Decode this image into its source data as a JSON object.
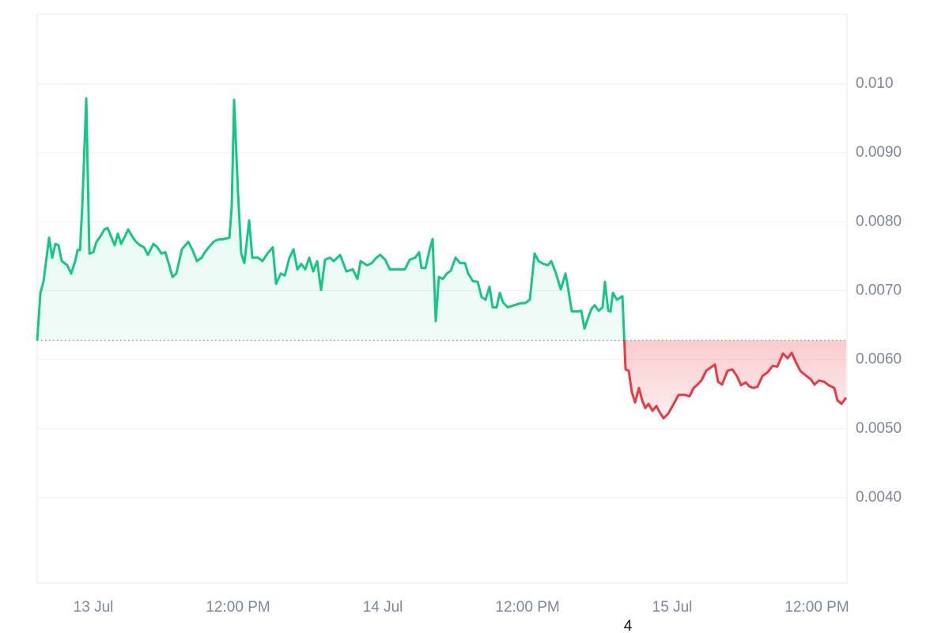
{
  "chart_data": {
    "type": "baseline-area",
    "x": [
      -4.66,
      -4.39,
      -4.13,
      -3.67,
      -3.41,
      -3.15,
      -2.89,
      -2.62,
      -2.16,
      -1.84,
      -1.51,
      -1.31,
      -1.11,
      -0.92,
      -0.59,
      -0.33,
      0,
      0.26,
      0.59,
      0.92,
      1.18,
      1.51,
      1.77,
      2.03,
      2.3,
      2.56,
      2.89,
      3.21,
      3.54,
      3.87,
      4.2,
      4.52,
      4.98,
      5.31,
      5.64,
      5.97,
      6.29,
      6.56,
      6.88,
      7.34,
      7.87,
      8.2,
      8.59,
      8.98,
      9.25,
      9.57,
      9.97,
      10.29,
      10.82,
      11.28,
      11.47,
      11.67,
      12,
      12.26,
      12.52,
      12.92,
      13.18,
      13.64,
      14.03,
      14.43,
      14.88,
      15.15,
      15.54,
      15.87,
      16.26,
      16.59,
      16.92,
      17.24,
      17.57,
      17.9,
      18.23,
      18.56,
      18.88,
      19.21,
      19.61,
      19.93,
      20.46,
      20.98,
      21.51,
      21.9,
      22.16,
      22.69,
      23.08,
      23.47,
      23.8,
      24.2,
      24.59,
      25.18,
      25.83,
      26.23,
      26.69,
      27.01,
      27.21,
      27.54,
      27.93,
      28.13,
      28.39,
      28.65,
      28.98,
      29.31,
      29.64,
      30.03,
      30.42,
      30.82,
      31.08,
      31.47,
      31.87,
      32.19,
      32.52,
      32.85,
      33.11,
      33.44,
      33.7,
      33.97,
      34.36,
      34.88,
      35.41,
      35.8,
      36.19,
      36.59,
      36.92,
      37.31,
      37.7,
      37.97,
      38.36,
      38.76,
      39.15,
      39.41,
      39.67,
      40.13,
      40.46,
      40.72,
      41.05,
      41.31,
      41.57,
      41.9,
      42.23,
      42.42,
      42.69,
      42.88,
      43.08,
      43.41,
      43.87,
      44.13,
      44.39,
      44.65,
      44.92,
      45.24,
      45.51,
      45.77,
      46.03,
      46.36,
      46.69,
      46.95,
      47.28,
      47.67,
      48.13,
      48.52,
      49.05,
      49.44,
      49.77,
      50.1,
      50.42,
      50.82,
      51.21,
      51.54,
      51.8,
      52.13,
      52.59,
      52.98,
      53.37,
      53.7,
      54.1,
      54.42,
      54.75,
      55.08,
      55.47,
      55.93,
      56.32,
      56.72,
      57.18,
      57.57,
      57.9,
      58.29,
      58.62,
      59.01,
      59.47,
      59.8,
      60.19,
      60.59,
      60.98,
      61.44,
      61.7,
      62.03,
      62.42
    ],
    "values": [
      0.00628,
      0.00697,
      0.00714,
      0.00777,
      0.00748,
      0.00768,
      0.00766,
      0.00743,
      0.00737,
      0.00725,
      0.00743,
      0.00759,
      0.00759,
      0.00823,
      0.00979,
      0.00754,
      0.00756,
      0.00771,
      0.00779,
      0.00789,
      0.00791,
      0.00777,
      0.00766,
      0.00783,
      0.00768,
      0.00777,
      0.00789,
      0.00779,
      0.00771,
      0.00766,
      0.00763,
      0.00752,
      0.00768,
      0.00763,
      0.00754,
      0.00756,
      0.00737,
      0.0072,
      0.00725,
      0.0076,
      0.00771,
      0.0076,
      0.00743,
      0.00748,
      0.00756,
      0.00763,
      0.00771,
      0.00774,
      0.00775,
      0.00777,
      0.00821,
      0.00977,
      0.0084,
      0.00754,
      0.0074,
      0.00802,
      0.00748,
      0.00748,
      0.00743,
      0.00754,
      0.00763,
      0.0071,
      0.00725,
      0.00722,
      0.00748,
      0.0076,
      0.00731,
      0.00739,
      0.00731,
      0.00748,
      0.00728,
      0.00743,
      0.00701,
      0.00745,
      0.00748,
      0.00743,
      0.00752,
      0.00728,
      0.00731,
      0.00717,
      0.00743,
      0.00737,
      0.0074,
      0.00748,
      0.00752,
      0.00745,
      0.00731,
      0.00731,
      0.00731,
      0.00745,
      0.00748,
      0.00756,
      0.00733,
      0.00733,
      0.00763,
      0.00775,
      0.00656,
      0.0072,
      0.00717,
      0.00725,
      0.00729,
      0.00748,
      0.0074,
      0.0074,
      0.00725,
      0.00714,
      0.00713,
      0.00691,
      0.00687,
      0.00706,
      0.00676,
      0.00676,
      0.00697,
      0.00683,
      0.00676,
      0.00679,
      0.00682,
      0.00682,
      0.00687,
      0.00754,
      0.00743,
      0.00739,
      0.00737,
      0.00743,
      0.00725,
      0.00702,
      0.00725,
      0.00699,
      0.0067,
      0.0067,
      0.00671,
      0.00645,
      0.00662,
      0.00674,
      0.00679,
      0.00671,
      0.00676,
      0.00713,
      0.00671,
      0.0067,
      0.00697,
      0.00687,
      0.00692,
      0.00586,
      0.00584,
      0.00553,
      0.00538,
      0.00559,
      0.00541,
      0.0053,
      0.00536,
      0.00526,
      0.00533,
      0.00524,
      0.00515,
      0.00522,
      0.00536,
      0.00549,
      0.00549,
      0.00547,
      0.00559,
      0.00564,
      0.0057,
      0.00584,
      0.00589,
      0.00593,
      0.00568,
      0.00564,
      0.00584,
      0.00586,
      0.00576,
      0.00563,
      0.00567,
      0.00561,
      0.00559,
      0.00561,
      0.00576,
      0.00582,
      0.00591,
      0.0059,
      0.00609,
      0.00602,
      0.0061,
      0.00595,
      0.00584,
      0.00578,
      0.00572,
      0.00564,
      0.0057,
      0.00568,
      0.00563,
      0.00559,
      0.00541,
      0.00536,
      0.00545
    ],
    "baseline": 0.00628,
    "colors": {
      "above": "#16c784",
      "below": "#ea3943"
    },
    "xlim": [
      -4.66,
      62.49
    ],
    "xticks": [
      {
        "value": 0,
        "label": "13 Jul"
      },
      {
        "value": 12,
        "label": "12:00 PM"
      },
      {
        "value": 24,
        "label": "14 Jul"
      },
      {
        "value": 36,
        "label": "12:00 PM"
      },
      {
        "value": 48,
        "label": "15 Jul"
      },
      {
        "value": 60,
        "label": "12:00 PM"
      }
    ],
    "ylim": [
      0.00276,
      0.01101
    ],
    "yticks": [
      {
        "value": 0.004,
        "label": "0.0040"
      },
      {
        "value": 0.005,
        "label": "0.0050"
      },
      {
        "value": 0.006,
        "label": "0.0060"
      },
      {
        "value": 0.007,
        "label": "0.0070"
      },
      {
        "value": 0.008,
        "label": "0.0080"
      },
      {
        "value": 0.009,
        "label": "0.0090"
      },
      {
        "value": 0.01,
        "label": "0.010"
      }
    ],
    "grid": true,
    "annotation": "4"
  }
}
